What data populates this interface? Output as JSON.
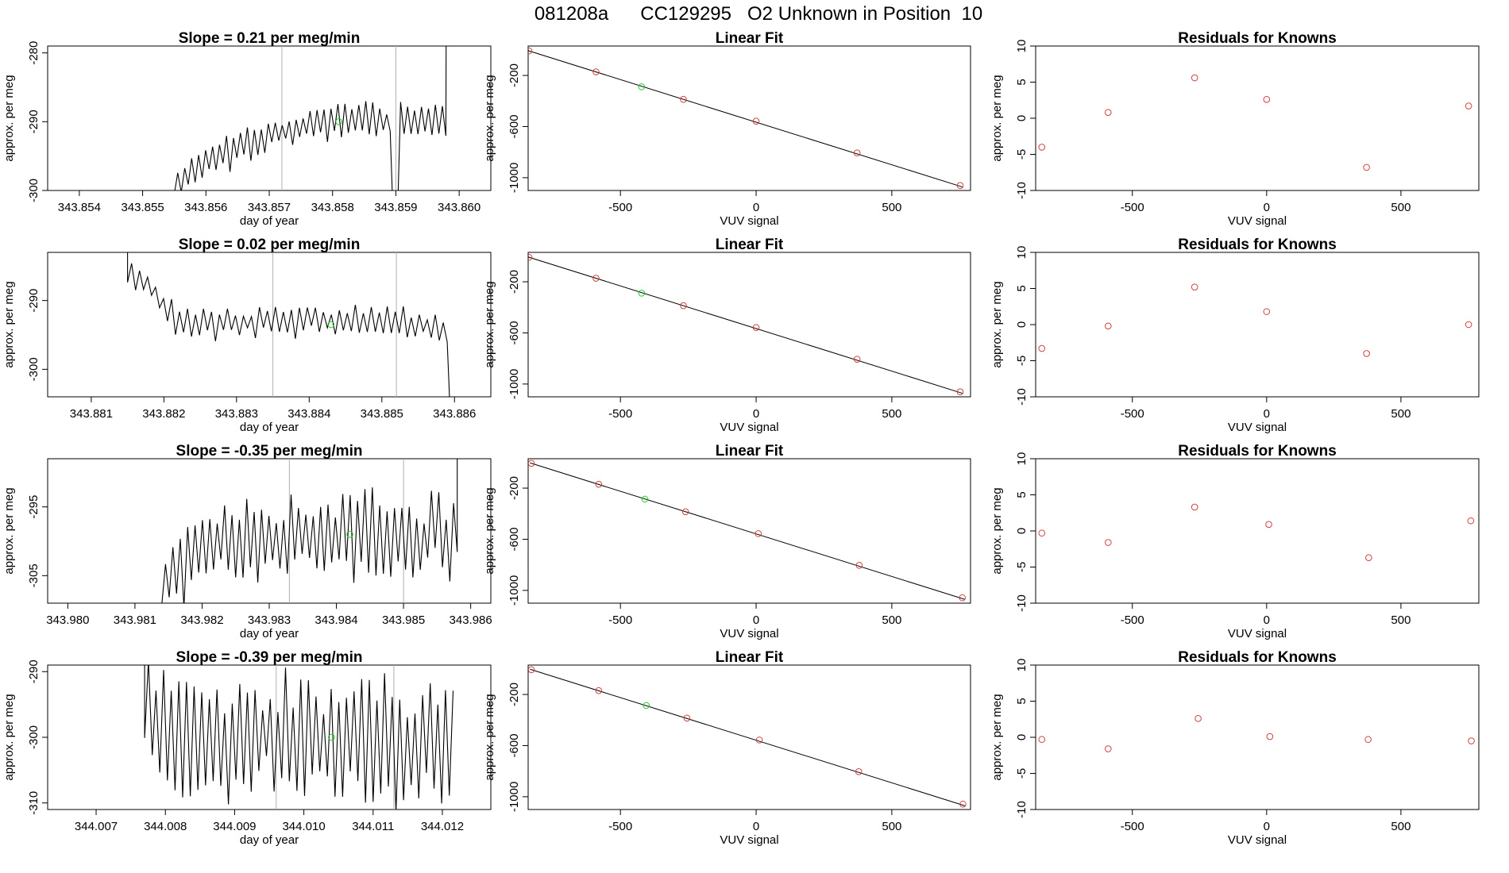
{
  "figure_title": "081208a      CC129295   O2 Unknown in Position  10",
  "colors": {
    "line": "#000000",
    "known": "#d04040",
    "unknown": "#22cc22",
    "vline": "#b0b0b0",
    "frame": "#000000"
  },
  "chart_data": [
    {
      "id": "ts1",
      "type": "line",
      "title": "Slope =  0.21  per meg/min",
      "xlabel": "day of year",
      "ylabel": "approx. per meg",
      "xlim": [
        343.8535,
        343.8605
      ],
      "ylim": [
        -300,
        -279
      ],
      "xticks": [
        343.854,
        343.855,
        343.856,
        343.857,
        343.858,
        343.859,
        343.86
      ],
      "xtick_decimals": 3,
      "yticks": [
        -300,
        -290,
        -280
      ],
      "start": 343.8555,
      "end": 343.8598,
      "jump_end": 343.8598,
      "base": [
        [
          343.8555,
          -299
        ],
        [
          343.8562,
          -295
        ],
        [
          343.8572,
          -291.5
        ],
        [
          343.8583,
          -289.5
        ],
        [
          343.8595,
          -290
        ]
      ],
      "amp": 2.2,
      "period": 0.00011,
      "seed": 11,
      "dips": [
        343.859
      ],
      "vlines": [
        343.8572,
        343.859
      ],
      "marker": [
        343.8581,
        -290
      ]
    },
    {
      "id": "fit1",
      "type": "scatter",
      "title": "Linear Fit",
      "xlabel": "VUV signal",
      "ylabel": "approx. per meg",
      "xlim": [
        -840,
        790
      ],
      "ylim": [
        -1100,
        30
      ],
      "xticks": [
        -500,
        0,
        500
      ],
      "yticks": [
        -1000,
        -600,
        -200
      ],
      "slope": -0.6665,
      "knowns": [
        [
          -837,
          -8
        ],
        [
          -590,
          -172
        ],
        [
          -268,
          -387
        ],
        [
          0,
          -558
        ],
        [
          372,
          -806
        ],
        [
          752,
          -1061
        ]
      ],
      "unknown": [
        -422,
        -289
      ]
    },
    {
      "id": "res1",
      "type": "scatter",
      "title": "Residuals for Knowns",
      "xlabel": "VUV signal",
      "ylabel": "approx. per meg",
      "xlim": [
        -860,
        790
      ],
      "ylim": [
        -10,
        10
      ],
      "xticks": [
        -500,
        0,
        500
      ],
      "yticks": [
        -10,
        -5,
        0,
        5,
        10
      ],
      "points": [
        [
          -837,
          -4
        ],
        [
          -590,
          0.8
        ],
        [
          -268,
          5.6
        ],
        [
          0,
          2.6
        ],
        [
          372,
          -6.8
        ],
        [
          752,
          1.7
        ]
      ]
    },
    {
      "id": "ts2",
      "type": "line",
      "title": "Slope =  0.02  per meg/min",
      "xlabel": "day of year",
      "ylabel": "approx. per meg",
      "xlim": [
        343.8804,
        343.8865
      ],
      "ylim": [
        -304,
        -283
      ],
      "xticks": [
        343.881,
        343.882,
        343.883,
        343.884,
        343.885,
        343.886
      ],
      "xtick_decimals": 3,
      "yticks": [
        -300,
        -290
      ],
      "start": 343.8815,
      "end": 343.886,
      "jump_start": 343.8815,
      "base": [
        [
          343.8815,
          -286
        ],
        [
          343.8818,
          -288
        ],
        [
          343.8822,
          -293.5
        ],
        [
          343.8835,
          -293
        ],
        [
          343.885,
          -293
        ],
        [
          343.886,
          -294
        ]
      ],
      "amp": 2.0,
      "period": 0.00011,
      "seed": 23,
      "dips": [
        343.886
      ],
      "vlines": [
        343.8835,
        343.8852
      ],
      "marker": [
        343.8843,
        -293.5
      ]
    },
    {
      "id": "fit2",
      "type": "scatter",
      "title": "Linear Fit",
      "xlabel": "VUV signal",
      "ylabel": "approx. per meg",
      "xlim": [
        -840,
        790
      ],
      "ylim": [
        -1100,
        30
      ],
      "xticks": [
        -500,
        0,
        500
      ],
      "yticks": [
        -1000,
        -600,
        -200
      ],
      "slope": -0.6665,
      "knowns": [
        [
          -837,
          -8
        ],
        [
          -590,
          -172
        ],
        [
          -268,
          -387
        ],
        [
          0,
          -558
        ],
        [
          372,
          -806
        ],
        [
          752,
          -1061
        ]
      ],
      "unknown": [
        -422,
        -289
      ]
    },
    {
      "id": "res2",
      "type": "scatter",
      "title": "Residuals for Knowns",
      "xlabel": "VUV signal",
      "ylabel": "approx. per meg",
      "xlim": [
        -860,
        790
      ],
      "ylim": [
        -10,
        10
      ],
      "xticks": [
        -500,
        0,
        500
      ],
      "yticks": [
        -10,
        -5,
        0,
        5,
        10
      ],
      "points": [
        [
          -837,
          -3.3
        ],
        [
          -590,
          -0.2
        ],
        [
          -268,
          5.2
        ],
        [
          0,
          1.8
        ],
        [
          372,
          -4
        ],
        [
          752,
          0
        ]
      ]
    },
    {
      "id": "ts3",
      "type": "line",
      "title": "Slope =  -0.35  per meg/min",
      "xlabel": "day of year",
      "ylabel": "approx. per meg",
      "xlim": [
        343.9797,
        343.9863
      ],
      "ylim": [
        -309,
        -288
      ],
      "xticks": [
        343.98,
        343.981,
        343.982,
        343.983,
        343.984,
        343.985,
        343.986
      ],
      "xtick_decimals": 3,
      "yticks": [
        -305,
        -295
      ],
      "start": 343.9814,
      "end": 343.9858,
      "jump_end": 343.9858,
      "base": [
        [
          343.9814,
          -306
        ],
        [
          343.982,
          -301
        ],
        [
          343.9834,
          -299.5
        ],
        [
          343.9845,
          -299.5
        ],
        [
          343.9858,
          -299
        ]
      ],
      "amp": 5.5,
      "period": 0.00011,
      "seed": 37,
      "dips": [],
      "vlines": [
        343.9833,
        343.985
      ],
      "marker": [
        343.9842,
        -299
      ]
    },
    {
      "id": "fit3",
      "type": "scatter",
      "title": "Linear Fit",
      "xlabel": "VUV signal",
      "ylabel": "approx. per meg",
      "xlim": [
        -840,
        790
      ],
      "ylim": [
        -1100,
        30
      ],
      "xticks": [
        -500,
        0,
        500
      ],
      "yticks": [
        -1000,
        -600,
        -200
      ],
      "slope": -0.6665,
      "knowns": [
        [
          -828,
          -6
        ],
        [
          -580,
          -170
        ],
        [
          -260,
          -385
        ],
        [
          8,
          -556
        ],
        [
          380,
          -804
        ],
        [
          760,
          -1058
        ]
      ],
      "unknown": [
        -410,
        -286
      ]
    },
    {
      "id": "res3",
      "type": "scatter",
      "title": "Residuals for Knowns",
      "xlabel": "VUV signal",
      "ylabel": "approx. per meg",
      "xlim": [
        -860,
        790
      ],
      "ylim": [
        -10,
        10
      ],
      "xticks": [
        -500,
        0,
        500
      ],
      "yticks": [
        -10,
        -5,
        0,
        5,
        10
      ],
      "points": [
        [
          -837,
          -0.3
        ],
        [
          -590,
          -1.6
        ],
        [
          -268,
          3.3
        ],
        [
          8,
          0.9
        ],
        [
          380,
          -3.7
        ],
        [
          760,
          1.4
        ]
      ]
    },
    {
      "id": "ts4",
      "type": "line",
      "title": "Slope =  -0.39  per meg/min",
      "xlabel": "day of year",
      "ylabel": "approx. per meg",
      "xlim": [
        344.0063,
        344.0127
      ],
      "ylim": [
        -311,
        -289
      ],
      "xticks": [
        344.007,
        344.008,
        344.009,
        344.01,
        344.011,
        344.012
      ],
      "xtick_decimals": 3,
      "yticks": [
        -310,
        -300,
        -290
      ],
      "start": 344.0077,
      "end": 344.0122,
      "jump_start": 344.0077,
      "base": [
        [
          344.0077,
          -296
        ],
        [
          344.008,
          -300
        ],
        [
          344.01,
          -300
        ],
        [
          344.0122,
          -301
        ]
      ],
      "amp": 8.2,
      "period": 0.00011,
      "seed": 51,
      "dips": [],
      "vlines": [
        344.0096,
        344.0113
      ],
      "marker": [
        344.0104,
        -300
      ]
    },
    {
      "id": "fit4",
      "type": "scatter",
      "title": "Linear Fit",
      "xlabel": "VUV signal",
      "ylabel": "approx. per meg",
      "xlim": [
        -840,
        790
      ],
      "ylim": [
        -1100,
        30
      ],
      "xticks": [
        -500,
        0,
        500
      ],
      "yticks": [
        -1000,
        -600,
        -200
      ],
      "slope": -0.6665,
      "knowns": [
        [
          -828,
          -6
        ],
        [
          -580,
          -170
        ],
        [
          -255,
          -385
        ],
        [
          12,
          -556
        ],
        [
          378,
          -804
        ],
        [
          762,
          -1058
        ]
      ],
      "unknown": [
        -405,
        -286
      ]
    },
    {
      "id": "res4",
      "type": "scatter",
      "title": "Residuals for Knowns",
      "xlabel": "VUV signal",
      "ylabel": "approx. per meg",
      "xlim": [
        -860,
        790
      ],
      "ylim": [
        -10,
        10
      ],
      "xticks": [
        -500,
        0,
        500
      ],
      "yticks": [
        -10,
        -5,
        0,
        5,
        10
      ],
      "points": [
        [
          -837,
          -0.3
        ],
        [
          -590,
          -1.6
        ],
        [
          -255,
          2.6
        ],
        [
          12,
          0.1
        ],
        [
          378,
          -0.3
        ],
        [
          762,
          -0.5
        ]
      ]
    }
  ]
}
